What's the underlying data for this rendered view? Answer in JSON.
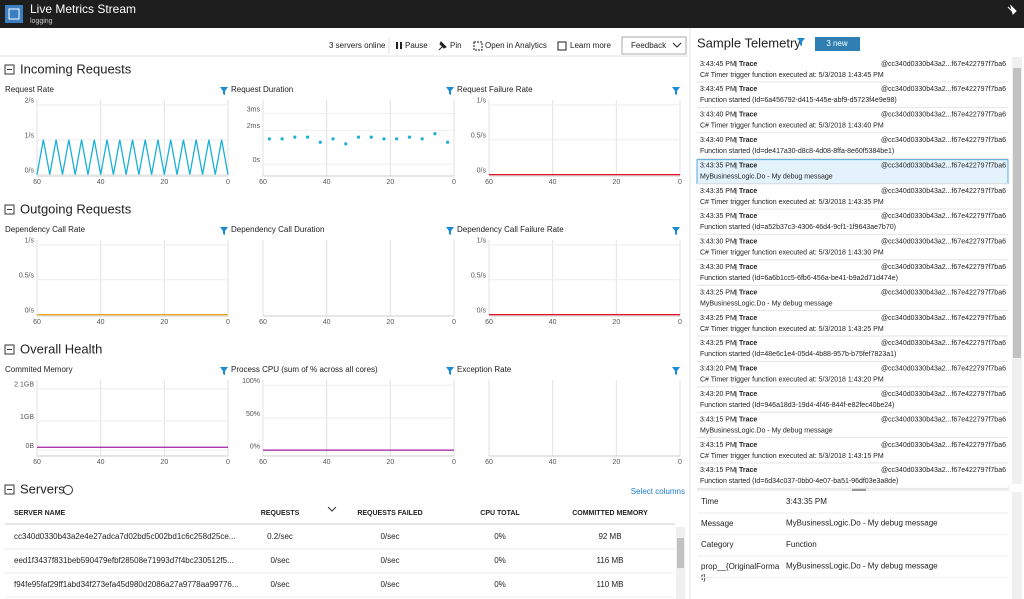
{
  "header": {
    "title": "Live Metrics Stream",
    "subtitle": "logging"
  },
  "toolbar": {
    "status": "3 servers online",
    "pause": "Pause",
    "pin": "Pin",
    "analytics": "Open in Analytics",
    "learn": "Learn more",
    "feedback": "Feedback"
  },
  "sections": [
    {
      "title": "Incoming Requests",
      "charts": [
        {
          "type": "line",
          "title": "Request Rate",
          "color": "#1ab0d8",
          "xlim": [
            60,
            0
          ],
          "xticks": [
            60,
            40,
            20,
            0
          ],
          "ylim": [
            -0.04,
            2.14
          ],
          "yticks": [
            {
              "value": 0,
              "label": "0/s"
            },
            {
              "value": 1,
              "label": "1/s"
            },
            {
              "value": 2,
              "label": "2/s"
            }
          ],
          "x": [
            60,
            58,
            56,
            54,
            52,
            50,
            48,
            46,
            44,
            42,
            40,
            38,
            36,
            34,
            32,
            30,
            28,
            26,
            24,
            22,
            20,
            18,
            16,
            14,
            12,
            10,
            8,
            6,
            4,
            2,
            0
          ],
          "values": [
            0,
            1,
            0,
            1,
            0,
            1,
            0,
            1,
            0,
            1,
            0,
            1,
            0,
            1,
            0,
            1,
            0,
            1,
            0,
            1,
            0,
            1,
            0,
            1,
            0,
            1,
            0,
            1,
            0,
            1,
            0
          ]
        },
        {
          "type": "scatter",
          "title": "Request Duration",
          "color": "#1ab0d8",
          "xlim": [
            60,
            0
          ],
          "xticks": [
            60,
            40,
            20,
            0
          ],
          "ylim": [
            -0.7,
            3.8
          ],
          "yticks": [
            {
              "value": 0,
              "label": "0s"
            },
            {
              "value": 2,
              "label": "2ms"
            },
            {
              "value": 3,
              "label": "3ms"
            }
          ],
          "x": [
            58,
            54,
            50,
            46,
            42,
            38,
            34,
            30,
            26,
            22,
            18,
            14,
            10,
            6,
            2
          ],
          "values": [
            1.5,
            1.5,
            1.6,
            1.6,
            1.3,
            1.5,
            1.2,
            1.6,
            1.6,
            1.5,
            1.5,
            1.6,
            1.5,
            1.8,
            1.3
          ]
        },
        {
          "type": "line",
          "title": "Request Failure Rate",
          "color": "#e81123",
          "xlim": [
            60,
            0
          ],
          "xticks": [
            60,
            40,
            20,
            0
          ],
          "ylim": [
            -0.02,
            1.07
          ],
          "yticks": [
            {
              "value": 0,
              "label": "0/s"
            },
            {
              "value": 0.5,
              "label": "0.5/s"
            },
            {
              "value": 1,
              "label": "1/s"
            }
          ],
          "x": [
            60,
            0
          ],
          "values": [
            0,
            0
          ]
        }
      ]
    },
    {
      "title": "Outgoing Requests",
      "charts": [
        {
          "type": "line",
          "title": "Dependency Call Rate",
          "color": "#f7a21b",
          "xlim": [
            60,
            0
          ],
          "xticks": [
            60,
            40,
            20,
            0
          ],
          "ylim": [
            -0.02,
            1.07
          ],
          "yticks": [
            {
              "value": 0,
              "label": "0/s"
            },
            {
              "value": 0.5,
              "label": "0.5/s"
            },
            {
              "value": 1,
              "label": "1/s"
            }
          ],
          "x": [
            60,
            0
          ],
          "values": [
            0,
            0
          ]
        },
        {
          "type": "line",
          "title": "Dependency Call Duration",
          "color": "#1ab0d8",
          "xlim": [
            60,
            0
          ],
          "xticks": [
            60,
            40,
            20,
            0
          ]
        },
        {
          "type": "line",
          "title": "Dependency Call Failure Rate",
          "color": "#e81123",
          "xlim": [
            60,
            0
          ],
          "xticks": [
            60,
            40,
            20,
            0
          ],
          "ylim": [
            -0.02,
            1.07
          ],
          "yticks": [
            {
              "value": 0,
              "label": "0/s"
            },
            {
              "value": 0.5,
              "label": "0.5/s"
            },
            {
              "value": 1,
              "label": "1/s"
            }
          ],
          "x": [
            60,
            0
          ],
          "values": [
            0,
            0
          ]
        }
      ]
    },
    {
      "title": "Overall Health",
      "charts": [
        {
          "type": "line",
          "title": "Commited Memory",
          "color": "#a020a0",
          "xlim": [
            60,
            0
          ],
          "xticks": [
            60,
            40,
            20,
            0
          ],
          "ylim": [
            -0.2,
            2.4
          ],
          "yticks": [
            {
              "value": 0,
              "label": "0B"
            },
            {
              "value": 1,
              "label": "1GB"
            },
            {
              "value": 2.1,
              "label": "2.1GB"
            }
          ],
          "x": [
            60,
            0
          ],
          "values": [
            0.1,
            0.1
          ]
        },
        {
          "type": "line",
          "title": "Process CPU (sum of % across all cores)",
          "color": "#a020a0",
          "xlim": [
            60,
            0
          ],
          "xticks": [
            60,
            40,
            20,
            0
          ],
          "ylim": [
            -8,
            108
          ],
          "yticks": [
            {
              "value": 0,
              "label": "0%"
            },
            {
              "value": 50,
              "label": "50%"
            },
            {
              "value": 100,
              "label": "100%"
            }
          ],
          "x": [
            60,
            0
          ],
          "values": [
            1,
            1
          ]
        },
        {
          "type": "line",
          "title": "Exception Rate",
          "color": "#e81123",
          "xlim": [
            60,
            0
          ],
          "xticks": [
            60,
            40,
            20,
            0
          ]
        }
      ]
    }
  ],
  "servers": {
    "title": "Servers",
    "select": "Select columns",
    "columns": [
      "SERVER NAME",
      "REQUESTS",
      "REQUESTS FAILED",
      "CPU TOTAL",
      "COMMITTED MEMORY"
    ],
    "rows": [
      [
        "cc340d0330b43a2e4e27adca7d02bd5c002bd1c6c258d25ce...",
        "0.2/sec",
        "0/sec",
        "0%",
        "92 MB"
      ],
      [
        "eed1f3437f831beb590479efbf28508e71993d7f4bc230512f5...",
        "0/sec",
        "0/sec",
        "0%",
        "116 MB"
      ],
      [
        "f94fe95faf29ff1abd34f273efa45d980d2086a27a9778aa99776...",
        "0/sec",
        "0/sec",
        "0%",
        "110 MB"
      ]
    ]
  },
  "telemetry": {
    "title": "Sample Telemetry",
    "badge": "3 new",
    "selected": 4,
    "items": [
      {
        "time": "3:43:45 PM",
        "type": "Trace",
        "id": "@cc340d0330b43a2...f67e422797f7ba6",
        "message": "C# Timer trigger function executed at: 5/3/2018 1:43:45 PM"
      },
      {
        "time": "3:43:45 PM",
        "type": "Trace",
        "id": "@cc340d0330b43a2...f67e422797f7ba6",
        "message": "Function started (Id=6a456792-d415-445e-abf9-d5723f4e9e98)"
      },
      {
        "time": "3:43:40 PM",
        "type": "Trace",
        "id": "@cc340d0330b43a2...f67e422797f7ba6",
        "message": "C# Timer trigger function executed at: 5/3/2018 1:43:40 PM"
      },
      {
        "time": "3:43:40 PM",
        "type": "Trace",
        "id": "@cc340d0330b43a2...f67e422797f7ba6",
        "message": "Function started (Id=de417a30-d8c8-4d08-8ffa-8e60f5384be1)"
      },
      {
        "time": "3:43:35 PM",
        "type": "Trace",
        "id": "@cc340d0330b43a2...f67e422797f7ba6",
        "message": "MyBusinessLogic.Do - My debug message"
      },
      {
        "time": "3:43:35 PM",
        "type": "Trace",
        "id": "@cc340d0330b43a2...f67e422797f7ba6",
        "message": "C# Timer trigger function executed at: 5/3/2018 1:43:35 PM"
      },
      {
        "time": "3:43:35 PM",
        "type": "Trace",
        "id": "@cc340d0330b43a2...f67e422797f7ba6",
        "message": "Function started (Id=a52b37c3-4306-46d4-9cf1-1f9643ae7b70)"
      },
      {
        "time": "3:43:30 PM",
        "type": "Trace",
        "id": "@cc340d0330b43a2...f67e422797f7ba6",
        "message": "C# Timer trigger function executed at: 5/3/2018 1:43:30 PM"
      },
      {
        "time": "3:43:30 PM",
        "type": "Trace",
        "id": "@cc340d0330b43a2...f67e422797f7ba6",
        "message": "Function started (Id=6a6b1cc5-6fb6-456a-be41-b9a2d71d474e)"
      },
      {
        "time": "3:43:25 PM",
        "type": "Trace",
        "id": "@cc340d0330b43a2...f67e422797f7ba6",
        "message": "MyBusinessLogic.Do - My debug message"
      },
      {
        "time": "3:43:25 PM",
        "type": "Trace",
        "id": "@cc340d0330b43a2...f67e422797f7ba6",
        "message": "C# Timer trigger function executed at: 5/3/2018 1:43:25 PM"
      },
      {
        "time": "3:43:25 PM",
        "type": "Trace",
        "id": "@cc340d0330b43a2...f67e422797f7ba6",
        "message": "Function started (Id=48e6c1e4-05d4-4b88-957b-b75fef7823a1)"
      },
      {
        "time": "3:43:20 PM",
        "type": "Trace",
        "id": "@cc340d0330b43a2...f67e422797f7ba6",
        "message": "C# Timer trigger function executed at: 5/3/2018 1:43:20 PM"
      },
      {
        "time": "3:43:20 PM",
        "type": "Trace",
        "id": "@cc340d0330b43a2...f67e422797f7ba6",
        "message": "Function started (Id=946a18d3-19d4-4f46-844f-e82fec40be24)"
      },
      {
        "time": "3:43:15 PM",
        "type": "Trace",
        "id": "@cc340d0330b43a2...f67e422797f7ba6",
        "message": "MyBusinessLogic.Do - My debug message"
      },
      {
        "time": "3:43:15 PM",
        "type": "Trace",
        "id": "@cc340d0330b43a2...f67e422797f7ba6",
        "message": "C# Timer trigger function executed at: 5/3/2018 1:43:15 PM"
      },
      {
        "time": "3:43:15 PM",
        "type": "Trace",
        "id": "@cc340d0330b43a2...f67e422797f7ba6",
        "message": "Function started (Id=6d34c037-0bb0-4e07-ba51-96df03e3a8de)"
      }
    ]
  },
  "details": [
    [
      "Time",
      "3:43:35 PM"
    ],
    [
      "Message",
      "MyBusinessLogic.Do - My debug message"
    ],
    [
      "Category",
      "Function"
    ],
    [
      "prop__{OriginalFormat}",
      "MyBusinessLogic.Do - My debug message"
    ]
  ]
}
